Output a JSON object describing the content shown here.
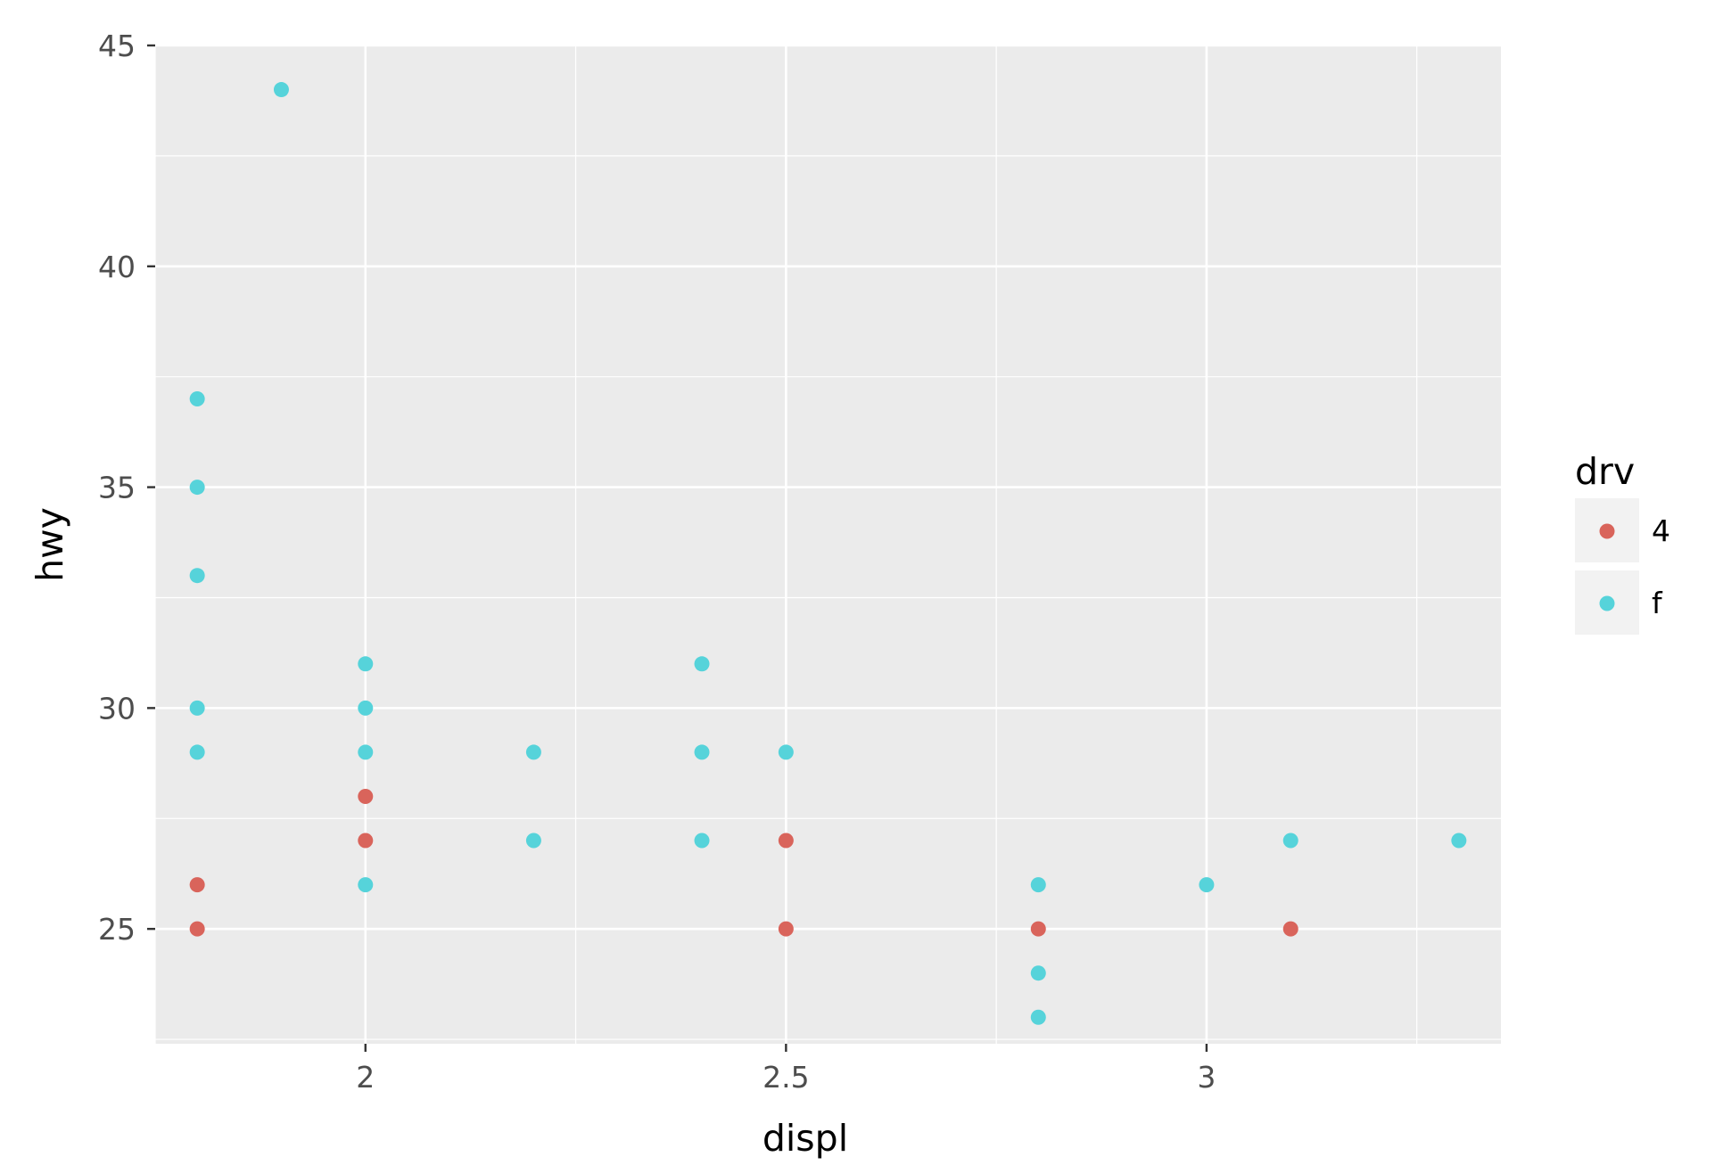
{
  "chart_data": {
    "type": "scatter",
    "xlabel": "displ",
    "ylabel": "hwy",
    "xlim": [
      1.75,
      3.35
    ],
    "ylim": [
      22.4,
      45
    ],
    "x_ticks": [
      2,
      2.5,
      3
    ],
    "x_tick_labels": [
      "2",
      "2.5",
      "3"
    ],
    "y_ticks": [
      25,
      30,
      35,
      40,
      45
    ],
    "y_tick_labels": [
      "25",
      "30",
      "35",
      "40",
      "45"
    ],
    "grid": true,
    "legend": {
      "title": "drv",
      "placement": "right",
      "entries": [
        {
          "label": "4",
          "color": "#d9645b"
        },
        {
          "label": "f",
          "color": "#56d3da"
        }
      ]
    },
    "series": [
      {
        "name": "4",
        "color": "#d9645b",
        "points": [
          [
            1.8,
            26
          ],
          [
            1.8,
            25
          ],
          [
            2.0,
            28
          ],
          [
            2.0,
            27
          ],
          [
            2.5,
            27
          ],
          [
            2.5,
            25
          ],
          [
            2.8,
            25
          ],
          [
            3.1,
            25
          ]
        ]
      },
      {
        "name": "f",
        "color": "#56d3da",
        "points": [
          [
            1.9,
            44
          ],
          [
            1.8,
            37
          ],
          [
            1.8,
            35
          ],
          [
            1.8,
            33
          ],
          [
            1.8,
            30
          ],
          [
            1.8,
            29
          ],
          [
            2.0,
            31
          ],
          [
            2.0,
            30
          ],
          [
            2.0,
            29
          ],
          [
            2.0,
            26
          ],
          [
            2.2,
            29
          ],
          [
            2.2,
            27
          ],
          [
            2.4,
            31
          ],
          [
            2.4,
            29
          ],
          [
            2.4,
            27
          ],
          [
            2.5,
            29
          ],
          [
            2.8,
            26
          ],
          [
            2.8,
            24
          ],
          [
            2.8,
            23
          ],
          [
            3.0,
            26
          ],
          [
            3.1,
            27
          ],
          [
            3.3,
            27
          ]
        ]
      }
    ]
  }
}
